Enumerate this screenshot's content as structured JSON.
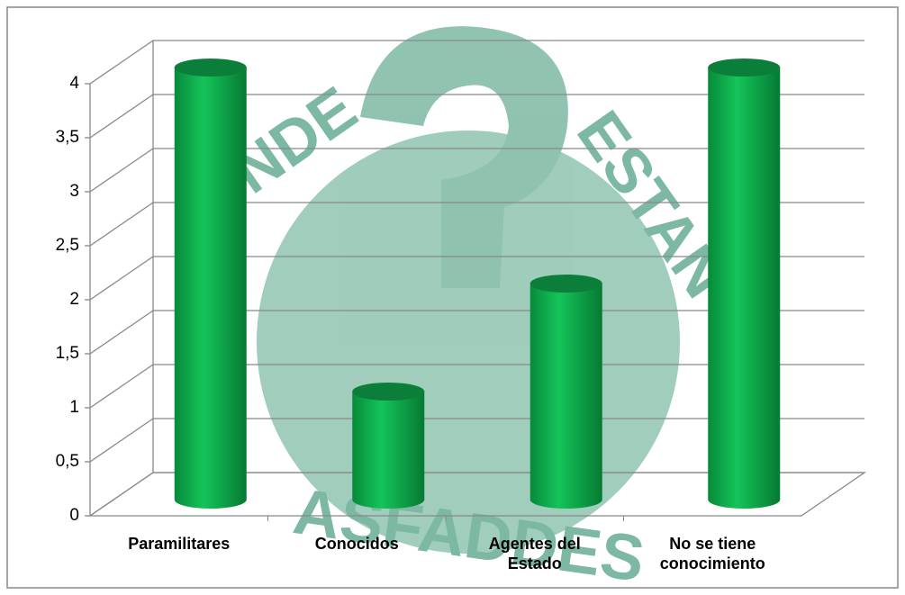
{
  "chart_data": {
    "type": "bar3d",
    "categories": [
      "Paramilitares",
      "Conocidos",
      "Agentes del Estado",
      "No se tiene conocimiento"
    ],
    "values": [
      4,
      1,
      2,
      4
    ],
    "color": "#00a94a",
    "ylim": [
      0,
      4
    ],
    "yticks": [
      0,
      {
        "value": 0.5,
        "label": "0,5"
      },
      1,
      {
        "value": 1.5,
        "label": "1,5"
      },
      2,
      {
        "value": 2.5,
        "label": "2,5"
      },
      3,
      {
        "value": 3.5,
        "label": "3,5"
      },
      4
    ],
    "grid": true,
    "watermark": [
      "NDE",
      "ESTAN",
      "ASFADDES"
    ]
  }
}
